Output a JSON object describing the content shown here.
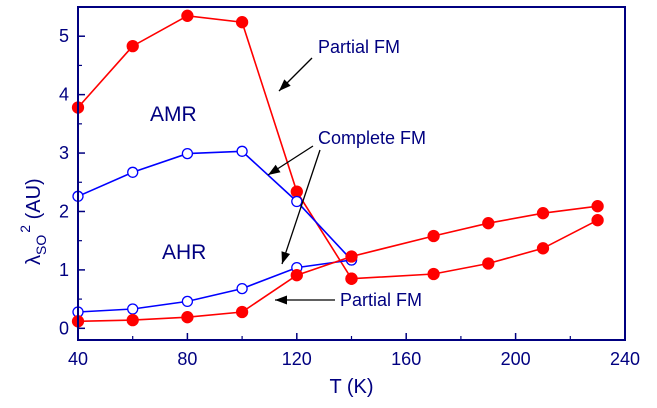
{
  "chart_data": {
    "type": "line",
    "xlabel": "T (K)",
    "ylabel_main": "λ",
    "ylabel_sub": "SO",
    "ylabel_sup": "2",
    "ylabel_units": " (AU)",
    "xlim": [
      40,
      240
    ],
    "ylim": [
      -0.2,
      5.5
    ],
    "x_ticks": [
      40,
      80,
      120,
      160,
      200,
      240
    ],
    "y_ticks": [
      0,
      1,
      2,
      3,
      4,
      5
    ],
    "grid": false,
    "colors": {
      "red": "#ff0000",
      "blue": "#0000ff",
      "axis": "#000080",
      "text": "#000080",
      "annotation": "#000080"
    },
    "series": [
      {
        "marker": "filled-circle",
        "color": "#ff0000",
        "x": [
          40,
          60,
          80,
          100,
          120,
          140
        ],
        "values": [
          3.78,
          4.83,
          5.35,
          5.24,
          2.34,
          0.85
        ]
      },
      {
        "marker": "filled-circle",
        "color": "#ff0000",
        "x": [
          140,
          170,
          190,
          210,
          230
        ],
        "values": [
          0.85,
          0.93,
          1.11,
          1.37,
          1.85
        ]
      },
      {
        "marker": "open-circle",
        "color": "#0000ff",
        "x": [
          40,
          60,
          80,
          100,
          120,
          140
        ],
        "values": [
          2.26,
          2.67,
          2.99,
          3.03,
          2.17,
          1.17
        ]
      },
      {
        "marker": "open-circle",
        "color": "#0000ff",
        "x": [
          40,
          60,
          80,
          100,
          120,
          140
        ],
        "values": [
          0.28,
          0.33,
          0.46,
          0.68,
          1.04,
          1.17
        ]
      },
      {
        "marker": "filled-circle",
        "color": "#ff0000",
        "x": [
          40,
          60,
          80,
          100,
          120,
          140,
          170,
          190,
          210,
          230
        ],
        "values": [
          0.12,
          0.14,
          0.19,
          0.28,
          0.91,
          1.23,
          1.58,
          1.8,
          1.97,
          2.09
        ]
      }
    ],
    "annotations": {
      "partial_fm_top": "Partial FM",
      "complete_fm": "Complete FM",
      "partial_fm_bottom": "Partial FM",
      "amr": "AMR",
      "ahr": "AHR"
    }
  }
}
